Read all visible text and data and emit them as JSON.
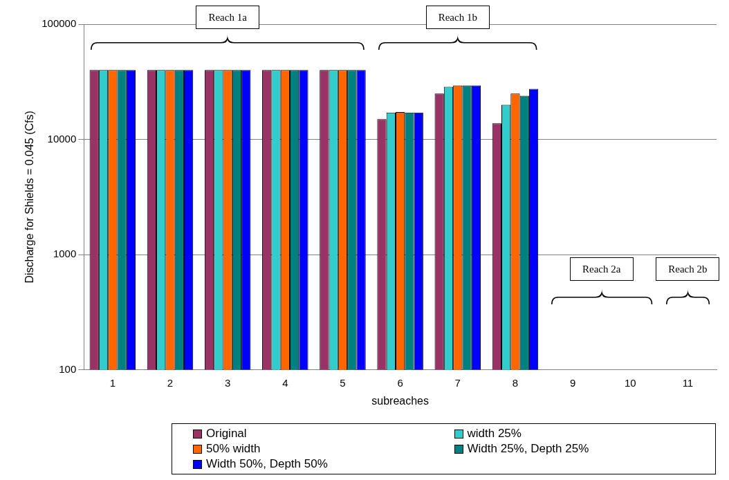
{
  "chart_data": {
    "type": "bar",
    "ylabel": "Discharge for Shields = 0.045 (Cfs)",
    "xlabel": "subreaches",
    "categories": [
      "1",
      "2",
      "3",
      "4",
      "5",
      "6",
      "7",
      "8",
      "9",
      "10",
      "11"
    ],
    "series": [
      {
        "name": "Original",
        "color": "#993366",
        "values": [
          40000,
          40000,
          40000,
          40000,
          40000,
          15000,
          25000,
          13800,
          null,
          null,
          null
        ]
      },
      {
        "name": "width 25%",
        "color": "#33cccc",
        "values": [
          40000,
          40000,
          40000,
          40000,
          40000,
          17100,
          28600,
          20000,
          null,
          null,
          null
        ]
      },
      {
        "name": "50% width",
        "color": "#ff6600",
        "values": [
          40000,
          40000,
          40000,
          40000,
          40000,
          17300,
          29400,
          25000,
          null,
          null,
          null
        ]
      },
      {
        "name": "Width 25%, Depth 25%",
        "color": "#008080",
        "values": [
          40000,
          40000,
          40000,
          40000,
          40000,
          17100,
          29400,
          23900,
          null,
          null,
          null
        ]
      },
      {
        "name": "Width 50%, Depth 50%",
        "color": "#0000ff",
        "values": [
          40000,
          40000,
          40000,
          40000,
          40000,
          17100,
          29400,
          27500,
          null,
          null,
          null
        ]
      }
    ],
    "log": "y",
    "ylim": [
      100,
      100000
    ],
    "yticks": [
      100,
      1000,
      10000,
      100000
    ],
    "grid": "y",
    "legend": "bottom",
    "annotations": [
      "Reach 1a",
      "Reach 1b",
      "Reach 2a",
      "Reach 2b"
    ]
  }
}
